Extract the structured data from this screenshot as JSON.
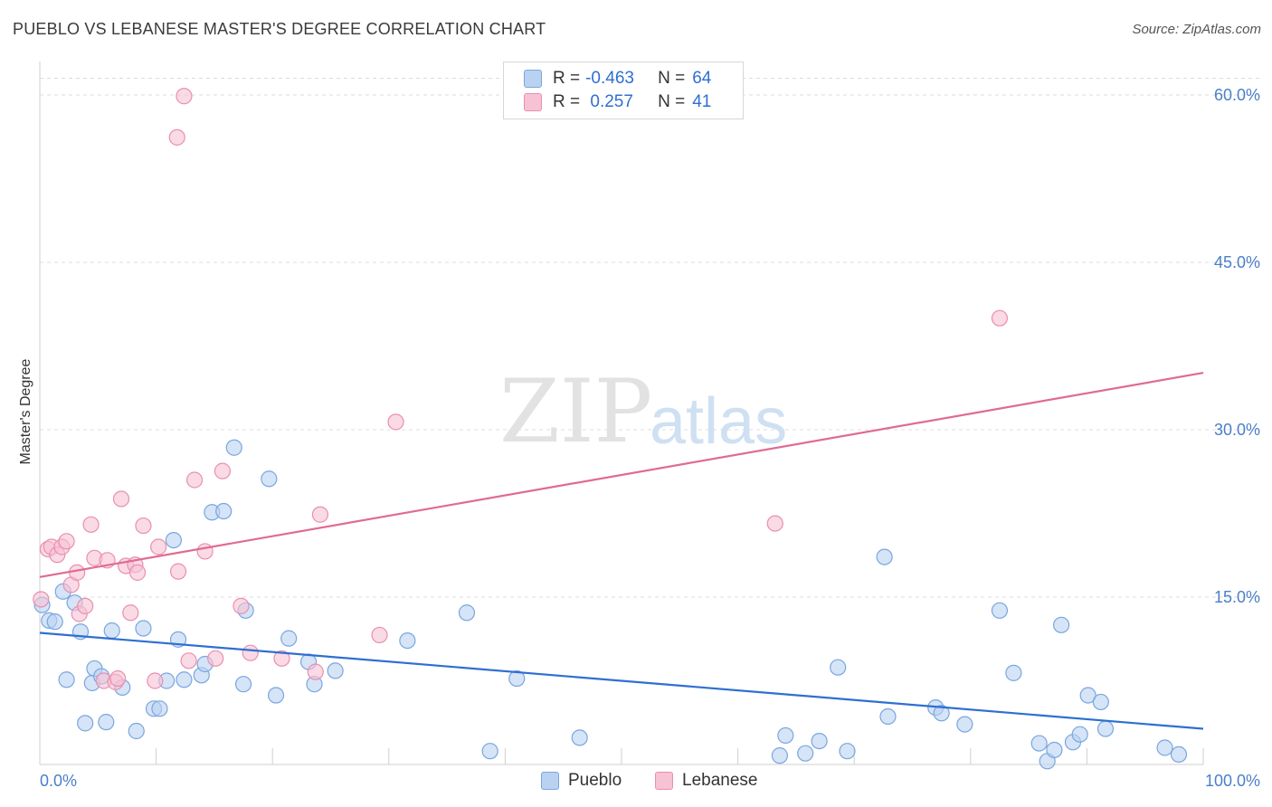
{
  "title": "PUEBLO VS LEBANESE MASTER'S DEGREE CORRELATION CHART",
  "source": "Source: ZipAtlas.com",
  "watermark": {
    "zip": "ZIP",
    "atlas": "atlas"
  },
  "colors": {
    "pueblo_fill": "#b9d2f2",
    "pueblo_stroke": "#7aa6de",
    "pueblo_line": "#2f6fd1",
    "lebanese_fill": "#f7c2d3",
    "lebanese_stroke": "#e98fb0",
    "lebanese_line": "#e06a95",
    "grid": "#dcdcdc",
    "tick_label": "#4a7fc9"
  },
  "legend": {
    "rows": [
      {
        "r_label": "R =",
        "r_value": "-0.463",
        "n_label": "N =",
        "n_value": "64"
      },
      {
        "r_label": "R =",
        "r_value": " 0.257",
        "n_label": "N =",
        "n_value": "41"
      }
    ]
  },
  "chart_data": {
    "type": "scatter",
    "title": "PUEBLO VS LEBANESE MASTER'S DEGREE CORRELATION CHART",
    "xlabel": "",
    "ylabel": "Master's Degree",
    "xlim": [
      0,
      100
    ],
    "ylim": [
      0,
      63
    ],
    "x_tick_labels": [
      "0.0%",
      "100.0%"
    ],
    "y_ticks": [
      15,
      30,
      45,
      60
    ],
    "y_tick_labels": [
      "15.0%",
      "30.0%",
      "45.0%",
      "60.0%"
    ],
    "grid": true,
    "legend_position": "top-center",
    "series": [
      {
        "name": "Pueblo",
        "trend": {
          "x": [
            0,
            100
          ],
          "y": [
            11.8,
            3.2
          ]
        },
        "points": [
          [
            0.2,
            14.3
          ],
          [
            0.8,
            12.9
          ],
          [
            1.3,
            12.8
          ],
          [
            2.0,
            15.5
          ],
          [
            2.3,
            7.6
          ],
          [
            3.0,
            14.5
          ],
          [
            3.5,
            11.9
          ],
          [
            3.9,
            3.7
          ],
          [
            4.5,
            7.3
          ],
          [
            4.7,
            8.6
          ],
          [
            5.3,
            7.9
          ],
          [
            5.7,
            3.8
          ],
          [
            6.2,
            12.0
          ],
          [
            7.1,
            6.9
          ],
          [
            8.3,
            3.0
          ],
          [
            8.9,
            12.2
          ],
          [
            9.8,
            5.0
          ],
          [
            10.3,
            5.0
          ],
          [
            10.9,
            7.5
          ],
          [
            11.5,
            20.1
          ],
          [
            11.9,
            11.2
          ],
          [
            12.4,
            7.6
          ],
          [
            13.9,
            8.0
          ],
          [
            14.2,
            9.0
          ],
          [
            14.8,
            22.6
          ],
          [
            15.8,
            22.7
          ],
          [
            16.7,
            28.4
          ],
          [
            17.5,
            7.2
          ],
          [
            17.7,
            13.8
          ],
          [
            19.7,
            25.6
          ],
          [
            20.3,
            6.2
          ],
          [
            21.4,
            11.3
          ],
          [
            23.1,
            9.2
          ],
          [
            23.6,
            7.2
          ],
          [
            25.4,
            8.4
          ],
          [
            31.6,
            11.1
          ],
          [
            36.7,
            13.6
          ],
          [
            38.7,
            1.2
          ],
          [
            41.0,
            7.7
          ],
          [
            46.4,
            2.4
          ],
          [
            63.6,
            0.8
          ],
          [
            64.1,
            2.6
          ],
          [
            65.8,
            1.0
          ],
          [
            67.0,
            2.1
          ],
          [
            68.6,
            8.7
          ],
          [
            69.4,
            1.2
          ],
          [
            72.6,
            18.6
          ],
          [
            72.9,
            4.3
          ],
          [
            77.0,
            5.1
          ],
          [
            77.5,
            4.6
          ],
          [
            79.5,
            3.6
          ],
          [
            82.5,
            13.8
          ],
          [
            83.7,
            8.2
          ],
          [
            85.9,
            1.9
          ],
          [
            86.6,
            0.3
          ],
          [
            87.2,
            1.3
          ],
          [
            87.8,
            12.5
          ],
          [
            88.8,
            2.0
          ],
          [
            89.4,
            2.7
          ],
          [
            90.1,
            6.2
          ],
          [
            91.2,
            5.6
          ],
          [
            91.6,
            3.2
          ],
          [
            96.7,
            1.5
          ],
          [
            97.9,
            0.9
          ]
        ]
      },
      {
        "name": "Lebanese",
        "trend": {
          "x": [
            0,
            100
          ],
          "y": [
            16.8,
            35.1
          ]
        },
        "points": [
          [
            0.1,
            14.8
          ],
          [
            0.7,
            19.3
          ],
          [
            1.0,
            19.5
          ],
          [
            1.5,
            18.8
          ],
          [
            1.9,
            19.5
          ],
          [
            2.3,
            20.0
          ],
          [
            2.7,
            16.1
          ],
          [
            3.2,
            17.2
          ],
          [
            3.4,
            13.5
          ],
          [
            3.9,
            14.2
          ],
          [
            4.4,
            21.5
          ],
          [
            4.7,
            18.5
          ],
          [
            5.5,
            7.5
          ],
          [
            5.8,
            18.3
          ],
          [
            6.5,
            7.4
          ],
          [
            6.7,
            7.7
          ],
          [
            7.0,
            23.8
          ],
          [
            7.4,
            17.8
          ],
          [
            7.8,
            13.6
          ],
          [
            8.2,
            17.9
          ],
          [
            8.4,
            17.2
          ],
          [
            8.9,
            21.4
          ],
          [
            9.9,
            7.5
          ],
          [
            10.2,
            19.5
          ],
          [
            11.8,
            56.2
          ],
          [
            11.9,
            17.3
          ],
          [
            12.4,
            59.9
          ],
          [
            12.8,
            9.3
          ],
          [
            13.3,
            25.5
          ],
          [
            14.2,
            19.1
          ],
          [
            15.1,
            9.5
          ],
          [
            15.7,
            26.3
          ],
          [
            17.3,
            14.2
          ],
          [
            18.1,
            10.0
          ],
          [
            20.8,
            9.5
          ],
          [
            23.7,
            8.3
          ],
          [
            24.1,
            22.4
          ],
          [
            29.2,
            11.6
          ],
          [
            30.6,
            30.7
          ],
          [
            63.2,
            21.6
          ],
          [
            82.5,
            40.0
          ]
        ]
      }
    ]
  }
}
